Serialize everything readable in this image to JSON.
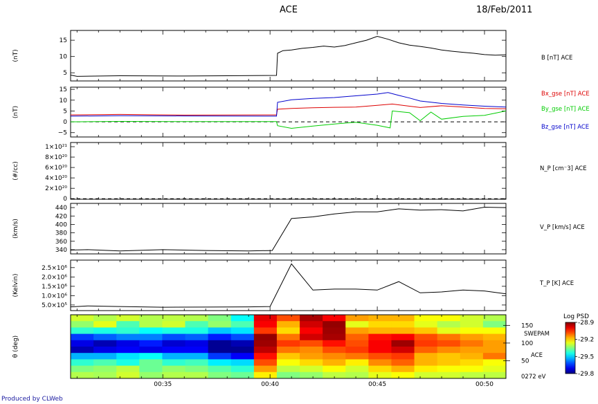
{
  "header": {
    "title": "ACE",
    "date": "18/Feb/2011"
  },
  "footer": {
    "credit": "Produced by CLWeb"
  },
  "time_axis": {
    "ticks": [
      "00:35",
      "00:40",
      "00:45",
      "00:50"
    ],
    "tick_minutes": [
      35,
      40,
      45,
      50
    ],
    "range_minutes": [
      30.7,
      51.0
    ]
  },
  "chart_data": [
    {
      "type": "line",
      "id": "B",
      "ylabel": "(nT)",
      "yticks": [
        "5",
        "10",
        "15"
      ],
      "ytick_values": [
        5,
        10,
        15
      ],
      "ylim": [
        2.5,
        18
      ],
      "series": [
        {
          "name": "B [nT] ACE",
          "color": "#000000",
          "x": [
            30.7,
            31.0,
            33.0,
            36.0,
            38.0,
            40.3,
            40.35,
            40.6,
            41.0,
            41.5,
            42.0,
            42.5,
            43.0,
            43.5,
            44.0,
            44.5,
            45.0,
            45.5,
            46.0,
            46.5,
            47.0,
            47.5,
            48.0,
            48.5,
            49.0,
            49.5,
            50.0,
            50.5,
            51.0
          ],
          "values": [
            4.3,
            3.9,
            4.1,
            4.0,
            4.1,
            4.2,
            11.0,
            11.8,
            12.0,
            12.5,
            12.8,
            13.2,
            12.9,
            13.4,
            14.2,
            15.0,
            16.2,
            15.3,
            14.2,
            13.5,
            13.1,
            12.6,
            12.0,
            11.6,
            11.3,
            11.0,
            10.6,
            10.4,
            10.5
          ]
        }
      ]
    },
    {
      "type": "line",
      "id": "Bgse",
      "ylabel": "(nT)",
      "yticks": [
        "−5",
        "0",
        "5",
        "10",
        "15"
      ],
      "ytick_values": [
        -5,
        0,
        5,
        10,
        15
      ],
      "ylim": [
        -7,
        16
      ],
      "reference_line": 0,
      "series": [
        {
          "name": "Bx_gse [nT] ACE",
          "color": "#dd0000",
          "x": [
            30.7,
            33.0,
            36.0,
            40.3,
            40.35,
            41.0,
            42.0,
            43.0,
            44.0,
            45.0,
            45.7,
            46.5,
            47.0,
            48.0,
            49.0,
            50.0,
            51.0
          ],
          "values": [
            3.2,
            3.4,
            3.1,
            3.2,
            5.8,
            6.2,
            6.5,
            6.7,
            6.8,
            7.6,
            8.2,
            7.2,
            6.6,
            7.4,
            6.8,
            6.2,
            6.0
          ]
        },
        {
          "name": "By_gse [nT] ACE",
          "color": "#00cc00",
          "x": [
            30.7,
            33.0,
            36.0,
            40.3,
            40.35,
            41.0,
            42.0,
            43.0,
            44.0,
            45.0,
            45.6,
            45.7,
            46.5,
            47.0,
            47.5,
            48.0,
            49.0,
            50.0,
            51.0
          ],
          "values": [
            0.0,
            0.2,
            0.1,
            0.1,
            -1.8,
            -3.0,
            -2.0,
            -1.0,
            -0.2,
            -1.6,
            -2.8,
            5.0,
            4.2,
            0.5,
            4.5,
            1.2,
            2.5,
            3.0,
            5.0
          ]
        },
        {
          "name": "Bz_gse [nT] ACE",
          "color": "#0000cc",
          "x": [
            30.7,
            33.0,
            36.0,
            40.3,
            40.35,
            41.0,
            42.0,
            43.0,
            44.0,
            45.0,
            45.5,
            46.0,
            46.5,
            47.0,
            48.0,
            49.0,
            50.0,
            51.0
          ],
          "values": [
            2.6,
            2.8,
            2.7,
            2.6,
            9.0,
            10.2,
            10.8,
            11.2,
            12.0,
            12.8,
            13.5,
            12.2,
            11.0,
            9.6,
            8.5,
            7.8,
            7.2,
            6.8
          ]
        }
      ]
    },
    {
      "type": "line",
      "id": "NP",
      "ylabel": "(#/cc)",
      "yticks": [
        "0",
        "2×10²⁰",
        "4×10²⁰",
        "6×10²⁰",
        "8×10²⁰",
        "1×10²¹"
      ],
      "ytick_values": [
        0,
        2e+20,
        4e+20,
        6e+20,
        8e+20,
        1e+21
      ],
      "ylim": [
        -1e+19,
        1.08e+21
      ],
      "reference_line": 0,
      "series": [
        {
          "name": "N_P [cm^-3] ACE",
          "label": "N_P [cm⁻3] ACE",
          "color": "#000000",
          "x": [],
          "values": []
        }
      ]
    },
    {
      "type": "line",
      "id": "VP",
      "ylabel": "(km/s)",
      "yticks": [
        "340",
        "360",
        "380",
        "400",
        "420",
        "440"
      ],
      "ytick_values": [
        340,
        360,
        380,
        400,
        420,
        440
      ],
      "ylim": [
        330,
        450
      ],
      "series": [
        {
          "name": "V_P [km/s] ACE",
          "color": "#000000",
          "x": [
            30.7,
            31.5,
            33.0,
            35.0,
            37.0,
            39.0,
            40.1,
            41.0,
            42.0,
            43.0,
            44.0,
            45.0,
            46.0,
            47.0,
            48.0,
            49.0,
            50.0,
            51.0
          ],
          "values": [
            339,
            340,
            337,
            340,
            338,
            337,
            338,
            414,
            418,
            425,
            430,
            430,
            437,
            434,
            435,
            432,
            441,
            440
          ]
        }
      ]
    },
    {
      "type": "line",
      "id": "TP",
      "ylabel": "(Kelvin)",
      "yticks": [
        "5.0×10⁵",
        "1.0×10⁶",
        "1.5×10⁶",
        "2.0×10⁶",
        "2.5×10⁶"
      ],
      "ytick_values": [
        500000,
        1000000,
        1500000,
        2000000,
        2500000
      ],
      "ylim": [
        200000,
        2900000
      ],
      "series": [
        {
          "name": "T_P [K] ACE",
          "color": "#000000",
          "x": [
            30.7,
            31.5,
            33.0,
            35.0,
            37.0,
            39.0,
            40.0,
            41.0,
            42.0,
            43.0,
            44.0,
            45.0,
            46.0,
            47.0,
            48.0,
            49.0,
            50.0,
            51.0
          ],
          "values": [
            400000,
            450000,
            420000,
            380000,
            390000,
            400000,
            420000,
            2700000,
            1300000,
            1350000,
            1350000,
            1300000,
            1750000,
            1150000,
            1200000,
            1300000,
            1250000,
            1100000
          ]
        }
      ]
    },
    {
      "type": "heatmap",
      "id": "SWEPAM",
      "ylabel": "θ (deg)",
      "yticks": [
        "50",
        "100",
        "150"
      ],
      "ytick_values": [
        50,
        100,
        150
      ],
      "ylim": [
        0,
        180
      ],
      "right_labels": [
        "SWEPAM",
        "ACE",
        "0272 eV"
      ],
      "colorbar": {
        "title": "Log PSD",
        "ticks": [
          "-28.9",
          "-29.2",
          "-29.5",
          "-29.8"
        ],
        "tick_values": [
          -28.9,
          -29.2,
          -29.5,
          -29.8
        ],
        "range": [
          -29.8,
          -28.9
        ]
      },
      "time_bins": 19,
      "theta_bins": 10,
      "values": [
        [
          0.58,
          0.55,
          0.58,
          0.55,
          0.56,
          0.55,
          0.5,
          0.38,
          0.9,
          0.8,
          0.96,
          0.88,
          0.72,
          0.7,
          0.7,
          0.62,
          0.62,
          0.58,
          0.55
        ],
        [
          0.52,
          0.6,
          0.45,
          0.55,
          0.58,
          0.45,
          0.52,
          0.45,
          0.88,
          0.7,
          0.92,
          0.98,
          0.6,
          0.66,
          0.66,
          0.6,
          0.55,
          0.58,
          0.5
        ],
        [
          0.42,
          0.4,
          0.42,
          0.38,
          0.4,
          0.4,
          0.32,
          0.35,
          0.82,
          0.66,
          0.88,
          0.97,
          0.72,
          0.7,
          0.7,
          0.68,
          0.6,
          0.62,
          0.62
        ],
        [
          0.18,
          0.22,
          0.25,
          0.25,
          0.2,
          0.22,
          0.15,
          0.2,
          0.98,
          0.76,
          0.92,
          0.96,
          0.78,
          0.86,
          0.88,
          0.8,
          0.76,
          0.72,
          0.7
        ],
        [
          0.1,
          0.05,
          0.1,
          0.15,
          0.08,
          0.1,
          0.02,
          0.05,
          0.97,
          0.82,
          0.8,
          0.86,
          0.8,
          0.88,
          0.97,
          0.82,
          0.8,
          0.76,
          0.72
        ],
        [
          0.05,
          0.1,
          0.12,
          0.1,
          0.12,
          0.12,
          0.02,
          0.02,
          0.94,
          0.76,
          0.74,
          0.8,
          0.82,
          0.88,
          0.92,
          0.78,
          0.74,
          0.72,
          0.72
        ],
        [
          0.3,
          0.3,
          0.35,
          0.38,
          0.3,
          0.3,
          0.18,
          0.12,
          0.86,
          0.68,
          0.72,
          0.74,
          0.76,
          0.8,
          0.82,
          0.7,
          0.68,
          0.7,
          0.76
        ],
        [
          0.42,
          0.45,
          0.4,
          0.48,
          0.42,
          0.44,
          0.36,
          0.34,
          0.8,
          0.62,
          0.66,
          0.7,
          0.64,
          0.74,
          0.78,
          0.7,
          0.68,
          0.66,
          0.62
        ],
        [
          0.5,
          0.52,
          0.56,
          0.48,
          0.52,
          0.5,
          0.46,
          0.42,
          0.72,
          0.56,
          0.58,
          0.62,
          0.58,
          0.66,
          0.7,
          0.64,
          0.62,
          0.62,
          0.6
        ],
        [
          0.55,
          0.54,
          0.58,
          0.52,
          0.55,
          0.55,
          0.5,
          0.48,
          0.64,
          0.5,
          0.52,
          0.56,
          0.55,
          0.6,
          0.62,
          0.58,
          0.58,
          0.56,
          0.56
        ]
      ]
    }
  ]
}
